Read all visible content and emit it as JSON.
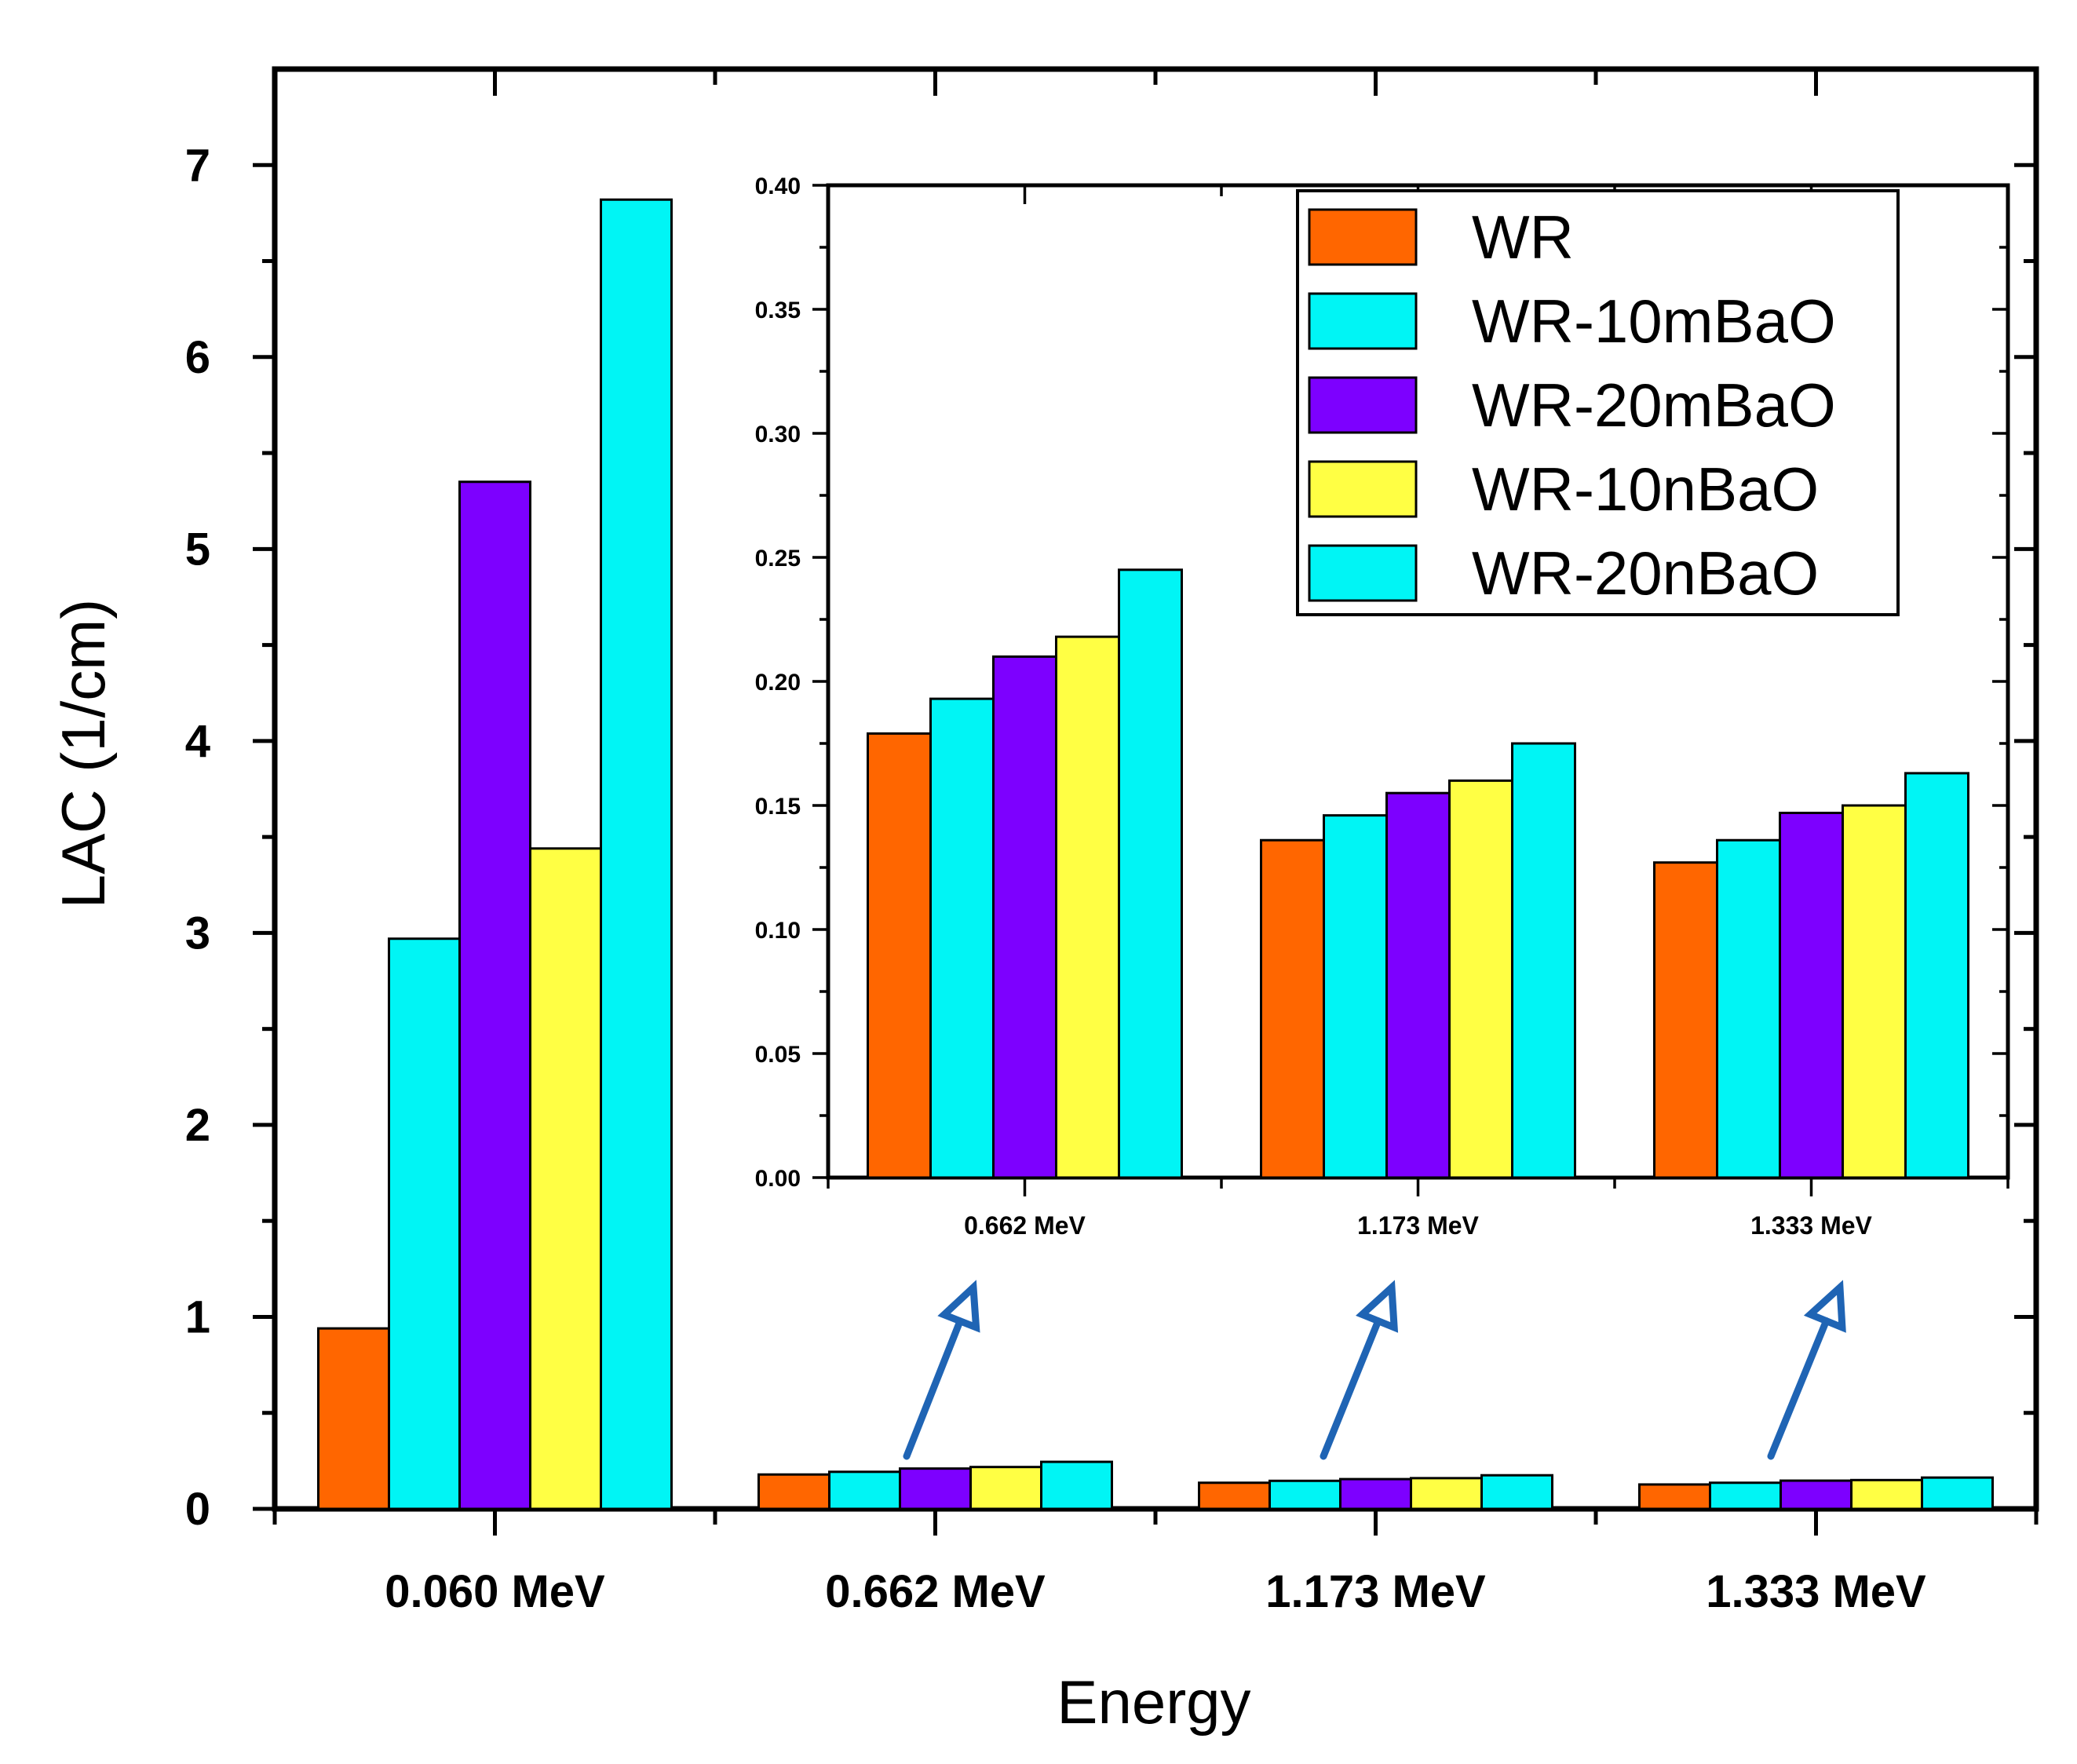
{
  "chart_data": [
    {
      "type": "bar",
      "xlabel": "Energy",
      "ylabel": "LAC (1/cm)",
      "categories": [
        "0.060 MeV",
        "0.662 MeV",
        "1.173 MeV",
        "1.333 MeV"
      ],
      "ylim": [
        0,
        7.5
      ],
      "yticks": [
        "0",
        "1",
        "2",
        "3",
        "4",
        "5",
        "6",
        "7"
      ],
      "series": [
        {
          "name": "WR",
          "color": "#ff6600",
          "values": [
            0.94,
            0.179,
            0.136,
            0.127
          ]
        },
        {
          "name": "WR-10mBaO",
          "color": "#00f5f5",
          "values": [
            2.97,
            0.193,
            0.146,
            0.136
          ]
        },
        {
          "name": "WR-20mBaO",
          "color": "#7d00ff",
          "values": [
            5.35,
            0.21,
            0.155,
            0.147
          ]
        },
        {
          "name": "WR-10nBaO",
          "color": "#ffff44",
          "values": [
            3.44,
            0.218,
            0.16,
            0.15
          ]
        },
        {
          "name": "WR-20nBaO",
          "color": "#00f5f5",
          "values": [
            6.82,
            0.245,
            0.175,
            0.163
          ]
        }
      ],
      "legend_position": "inside inset, top-right",
      "grid": false
    },
    {
      "type": "bar",
      "role": "inset",
      "categories": [
        "0.662 MeV",
        "1.173 MeV",
        "1.333 MeV"
      ],
      "ylim": [
        0,
        0.4
      ],
      "yticks": [
        "0.00",
        "0.05",
        "0.10",
        "0.15",
        "0.20",
        "0.25",
        "0.30",
        "0.35",
        "0.40"
      ],
      "series": [
        {
          "name": "WR",
          "color": "#ff6600",
          "values": [
            0.179,
            0.136,
            0.127
          ]
        },
        {
          "name": "WR-10mBaO",
          "color": "#00f5f5",
          "values": [
            0.193,
            0.146,
            0.136
          ]
        },
        {
          "name": "WR-20mBaO",
          "color": "#7d00ff",
          "values": [
            0.21,
            0.155,
            0.147
          ]
        },
        {
          "name": "WR-10nBaO",
          "color": "#ffff44",
          "values": [
            0.218,
            0.16,
            0.15
          ]
        },
        {
          "name": "WR-20nBaO",
          "color": "#00f5f5",
          "values": [
            0.245,
            0.175,
            0.163
          ]
        }
      ],
      "arrow_color": "#1f64b4"
    }
  ]
}
